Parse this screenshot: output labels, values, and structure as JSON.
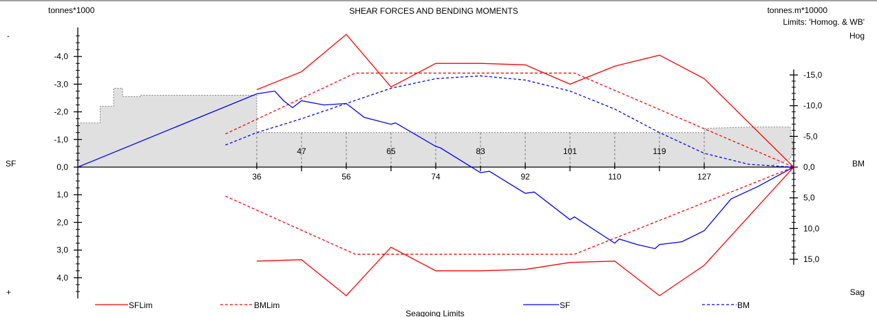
{
  "chart_data": {
    "type": "line",
    "title": "SHEAR FORCES AND BENDING MOMENTS",
    "subtitle": "Seagoing Limits",
    "left_axis": {
      "unit": "tonnes*1000",
      "label": "SF",
      "sign_top": "-",
      "sign_bottom": "+",
      "ticks": [
        "-4,0",
        "-3,0",
        "-2,0",
        "-1,0",
        "0,0",
        "1,0",
        "2,0",
        "3,0",
        "4,0"
      ],
      "tick_values": [
        -4,
        -3,
        -2,
        -1,
        0,
        1,
        2,
        3,
        4
      ],
      "ylim": [
        -4.9,
        4.7
      ],
      "inverted": true
    },
    "right_axis": {
      "unit": "tonnes.m*10000",
      "limits_note": "Limits: 'Homog. & WB'",
      "label": "BM",
      "top_label": "Hog",
      "bottom_label": "Sag",
      "ticks": [
        "-15,0",
        "-10,0",
        "-5,0",
        "0,0",
        "5,0",
        "10,0",
        "15,0"
      ],
      "tick_values": [
        -15,
        -10,
        -5,
        0,
        5,
        10,
        15
      ]
    },
    "x_axis": {
      "frame_labels": [
        "36",
        "47",
        "56",
        "65",
        "74",
        "83",
        "92",
        "101",
        "110",
        "119",
        "127"
      ],
      "frame_positions": [
        1,
        1.5,
        2,
        2.5,
        3,
        3.5,
        4,
        4.5,
        5,
        5.5,
        6
      ],
      "label_rows": [
        "bottom",
        "top",
        "bottom",
        "top",
        "bottom",
        "top",
        "bottom",
        "top",
        "bottom",
        "top",
        "bottom"
      ],
      "xlim": [
        -1,
        7
      ]
    },
    "ship_profile": [
      [
        -1,
        -1.6
      ],
      [
        -0.75,
        -1.6
      ],
      [
        -0.75,
        -2.2
      ],
      [
        -0.6,
        -2.2
      ],
      [
        -0.6,
        -2.85
      ],
      [
        -0.5,
        -2.85
      ],
      [
        -0.5,
        -2.55
      ],
      [
        -0.3,
        -2.55
      ],
      [
        -0.3,
        -2.6
      ],
      [
        1.0,
        -2.6
      ],
      [
        1.0,
        -1.25
      ],
      [
        6.0,
        -1.25
      ],
      [
        6.0,
        -1.4
      ],
      [
        6.5,
        -1.45
      ],
      [
        6.96,
        -1.45
      ],
      [
        7.0,
        -0.6
      ],
      [
        6.96,
        -0.3
      ],
      [
        6.75,
        -0.05
      ],
      [
        7.0,
        0
      ]
    ],
    "series": [
      {
        "name": "SFLim",
        "color": "#ff0000",
        "style": "solid",
        "segments": [
          [
            [
              1.0,
              -2.8
            ],
            [
              1.5,
              -3.45
            ],
            [
              2.0,
              -4.8
            ],
            [
              2.5,
              -2.9
            ],
            [
              3.0,
              -3.75
            ],
            [
              3.5,
              -3.75
            ],
            [
              4.0,
              -3.7
            ],
            [
              4.5,
              -3.0
            ],
            [
              5.0,
              -3.65
            ],
            [
              5.5,
              -4.05
            ],
            [
              6.0,
              -3.2
            ],
            [
              7.0,
              0
            ]
          ],
          [
            [
              1.0,
              3.4
            ],
            [
              1.5,
              3.35
            ],
            [
              2.0,
              4.65
            ],
            [
              2.5,
              2.9
            ],
            [
              3.0,
              3.75
            ],
            [
              3.5,
              3.75
            ],
            [
              4.0,
              3.7
            ],
            [
              4.5,
              3.45
            ],
            [
              5.0,
              3.4
            ],
            [
              5.5,
              4.65
            ],
            [
              6.0,
              3.55
            ],
            [
              7.0,
              0
            ]
          ]
        ]
      },
      {
        "name": "BMLim",
        "color": "#ff0000",
        "style": "dashed",
        "segments": [
          [
            [
              0.65,
              -1.2
            ],
            [
              2.1,
              -3.4
            ],
            [
              4.55,
              -3.4
            ],
            [
              7.0,
              0
            ]
          ],
          [
            [
              0.65,
              1.05
            ],
            [
              2.1,
              3.15
            ],
            [
              4.55,
              3.15
            ],
            [
              7.0,
              0
            ]
          ]
        ]
      },
      {
        "name": "SF",
        "color": "#0000ff",
        "style": "solid",
        "segments": [
          [
            [
              -1.0,
              0
            ],
            [
              1.0,
              -2.65
            ],
            [
              1.2,
              -2.75
            ],
            [
              1.3,
              -2.4
            ],
            [
              1.4,
              -2.15
            ],
            [
              1.5,
              -2.4
            ],
            [
              1.75,
              -2.25
            ],
            [
              2.0,
              -2.3
            ],
            [
              2.2,
              -1.8
            ],
            [
              2.5,
              -1.55
            ],
            [
              2.55,
              -1.6
            ],
            [
              3.0,
              -0.75
            ],
            [
              3.05,
              -0.7
            ],
            [
              3.5,
              0.2
            ],
            [
              3.6,
              0.15
            ],
            [
              4.0,
              0.95
            ],
            [
              4.1,
              0.9
            ],
            [
              4.5,
              1.9
            ],
            [
              4.55,
              1.8
            ],
            [
              5.0,
              2.75
            ],
            [
              5.05,
              2.6
            ],
            [
              5.25,
              2.8
            ],
            [
              5.45,
              2.95
            ],
            [
              5.5,
              2.8
            ],
            [
              5.75,
              2.7
            ],
            [
              6.0,
              2.3
            ],
            [
              6.3,
              1.15
            ],
            [
              6.6,
              0.7
            ],
            [
              7.0,
              0
            ]
          ]
        ]
      },
      {
        "name": "BM",
        "color": "#0000ff",
        "style": "dashed",
        "segments": [
          [
            [
              0.65,
              -0.8
            ],
            [
              1.0,
              -1.25
            ],
            [
              1.5,
              -1.75
            ],
            [
              2.0,
              -2.3
            ],
            [
              2.5,
              -2.85
            ],
            [
              3.0,
              -3.2
            ],
            [
              3.5,
              -3.3
            ],
            [
              4.0,
              -3.15
            ],
            [
              4.5,
              -2.75
            ],
            [
              5.0,
              -2.1
            ],
            [
              5.5,
              -1.25
            ],
            [
              6.0,
              -0.5
            ],
            [
              6.5,
              -0.1
            ],
            [
              7.0,
              0
            ]
          ]
        ]
      }
    ],
    "legend": {
      "placement": "bottom",
      "entries": [
        {
          "name": "SFLim",
          "color": "#ff0000",
          "style": "solid"
        },
        {
          "name": "BMLim",
          "color": "#ff0000",
          "style": "dashed"
        },
        {
          "name": "SF",
          "color": "#0000ff",
          "style": "solid"
        },
        {
          "name": "BM",
          "color": "#0000ff",
          "style": "dashed"
        }
      ]
    },
    "grid": "vertical dashed lines at frame positions"
  }
}
